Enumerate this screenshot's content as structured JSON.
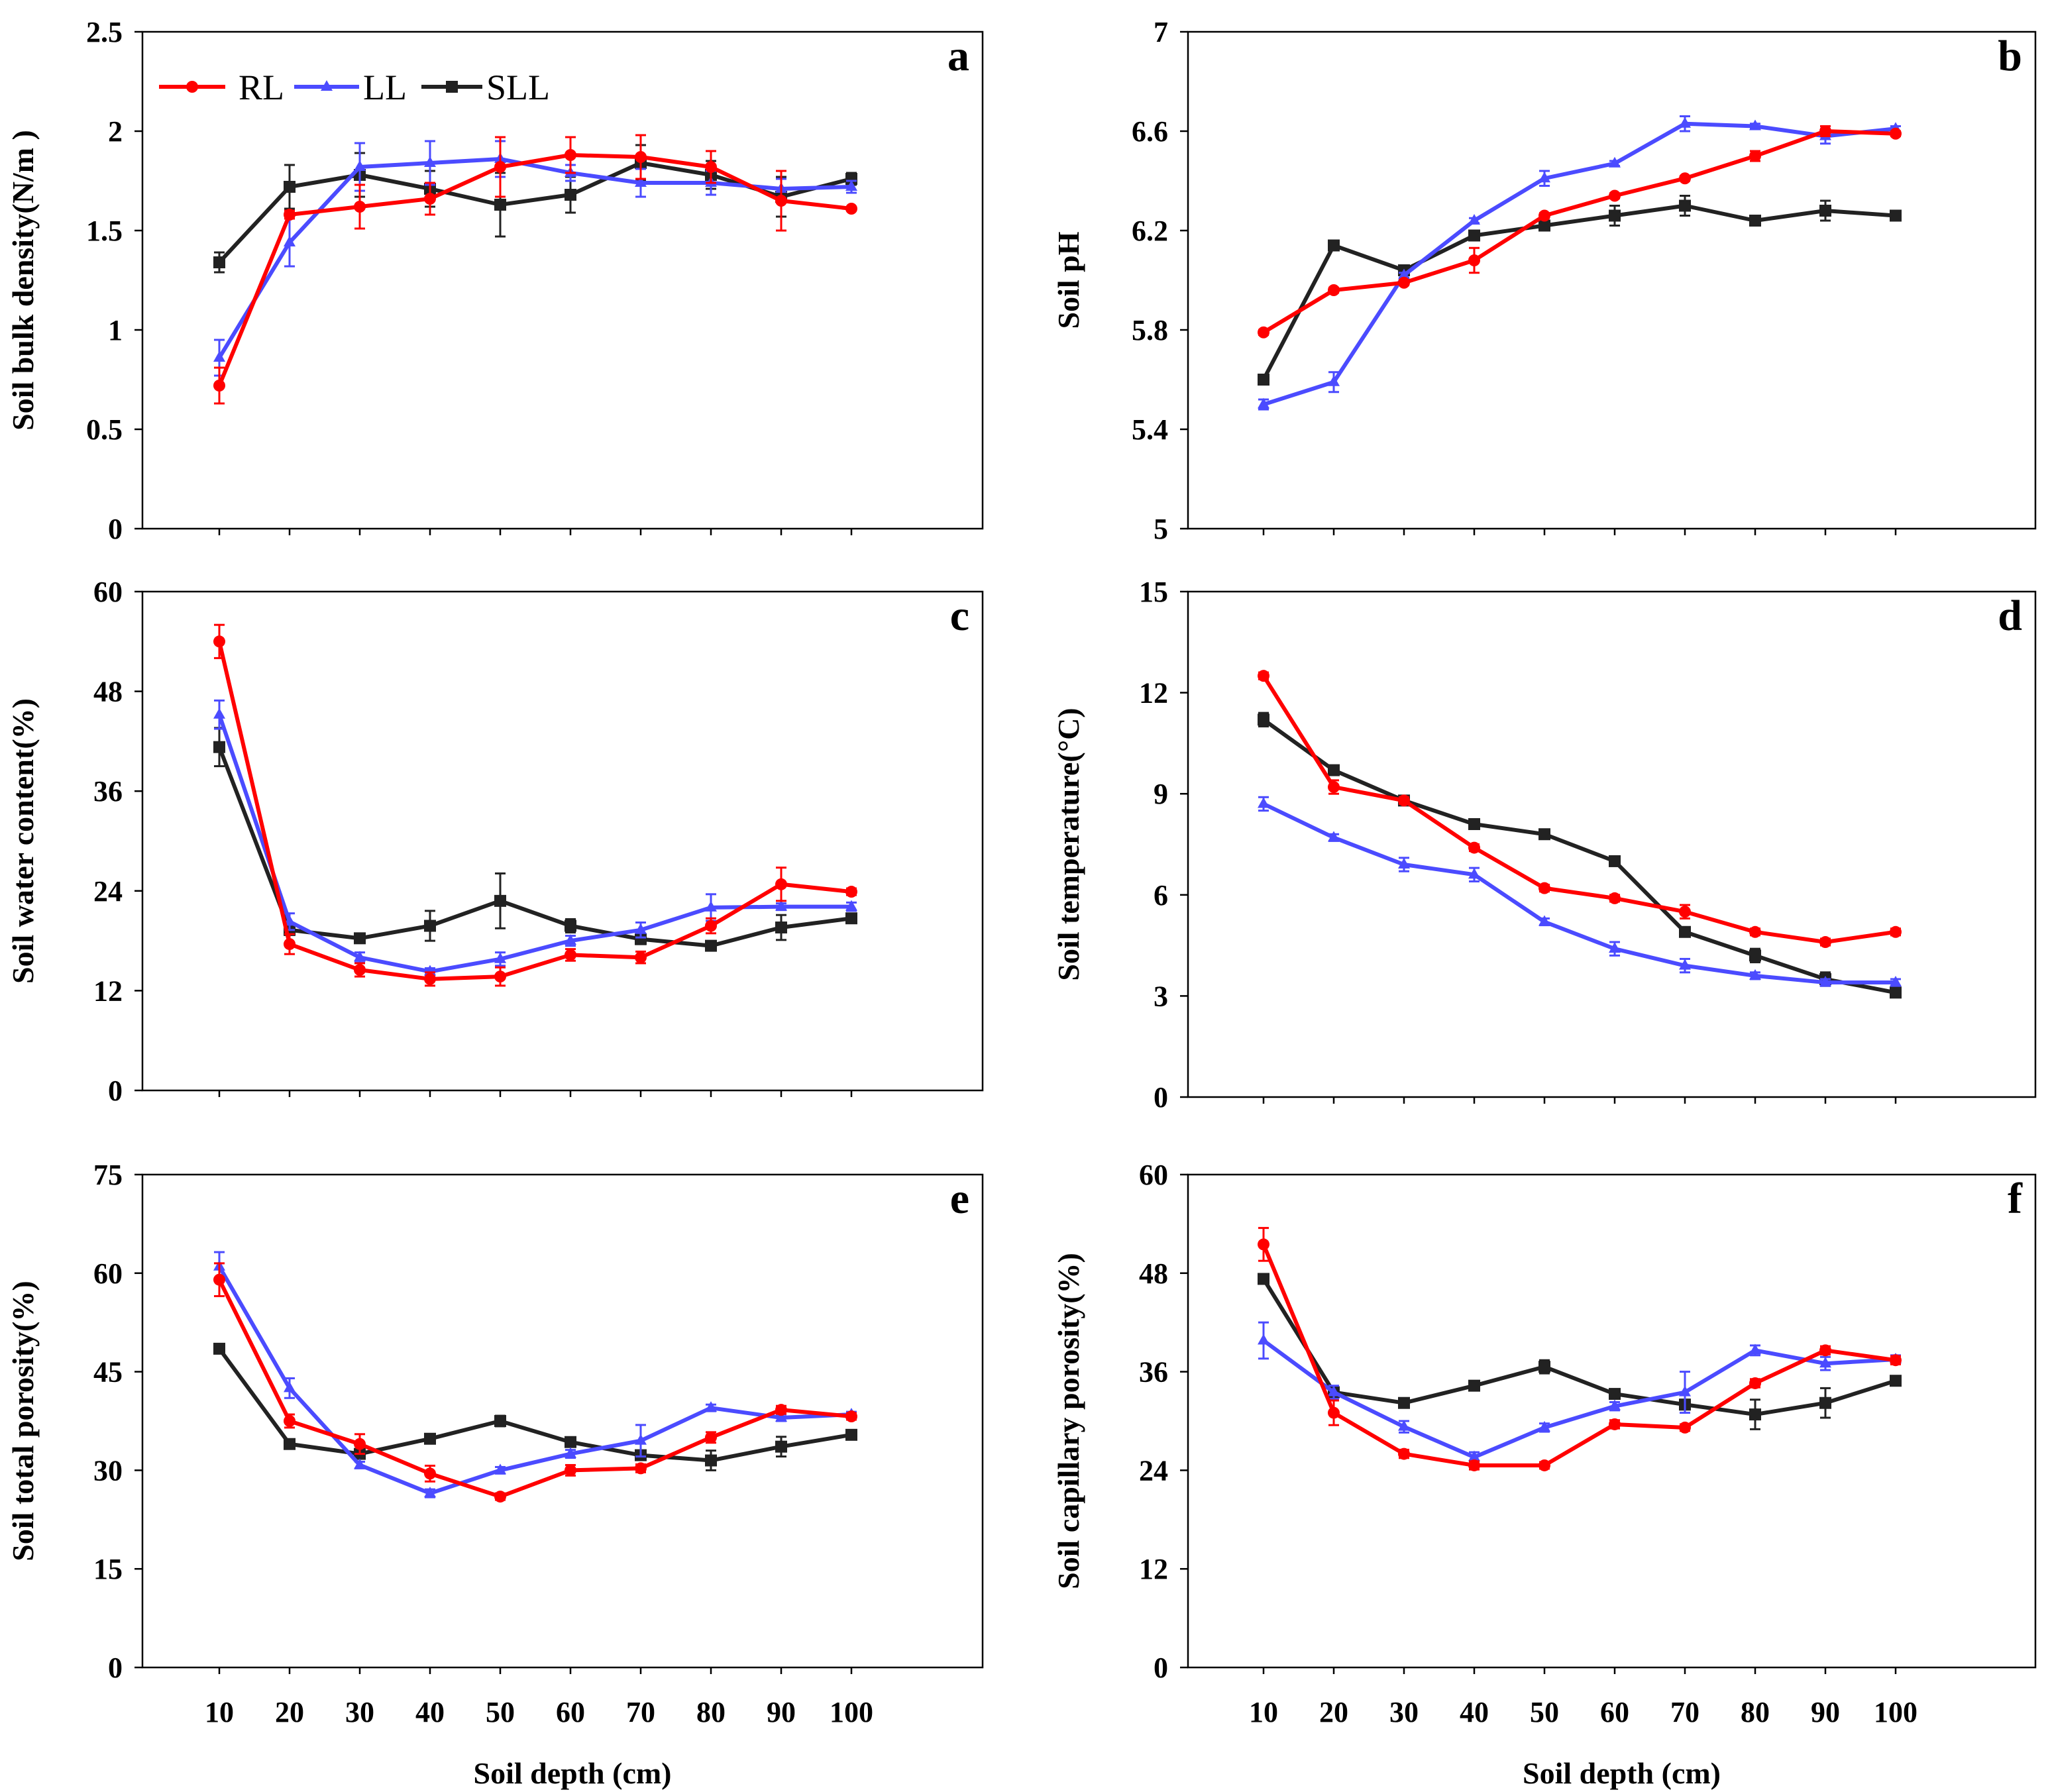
{
  "colors": {
    "RL": "#ff0000",
    "LL": "#4b4bff",
    "SLL": "#222222"
  },
  "legend": [
    {
      "key": "RL",
      "label": "RL",
      "marker": "circle"
    },
    {
      "key": "LL",
      "label": "LL",
      "marker": "triangle"
    },
    {
      "key": "SLL",
      "label": "SLL",
      "marker": "square"
    }
  ],
  "chart_data": [
    {
      "id": "a",
      "letter": "a",
      "type": "line",
      "ylabel": "Soil bulk density(N/m )",
      "xlabel": "",
      "ylim": [
        0,
        2.5
      ],
      "yticks": [
        "0",
        "0.5",
        "1",
        "1.5",
        "2",
        "2.5"
      ],
      "categories": [
        "10",
        "20",
        "30",
        "40",
        "50",
        "60",
        "70",
        "80",
        "90",
        "100"
      ],
      "show_x_labels": false,
      "series": [
        {
          "name": "RL",
          "values": [
            0.72,
            1.58,
            1.62,
            1.66,
            1.82,
            1.88,
            1.87,
            1.82,
            1.65,
            1.61
          ],
          "errors": [
            0.09,
            0.02,
            0.11,
            0.08,
            0.15,
            0.09,
            0.11,
            0.08,
            0.15,
            0.01
          ]
        },
        {
          "name": "LL",
          "values": [
            0.86,
            1.44,
            1.82,
            1.84,
            1.86,
            1.79,
            1.74,
            1.74,
            1.71,
            1.72
          ],
          "errors": [
            0.09,
            0.12,
            0.12,
            0.11,
            0.09,
            0.04,
            0.07,
            0.06,
            0.05,
            0.03
          ]
        },
        {
          "name": "SLL",
          "values": [
            1.34,
            1.72,
            1.78,
            1.71,
            1.63,
            1.68,
            1.84,
            1.78,
            1.67,
            1.76
          ],
          "errors": [
            0.05,
            0.11,
            0.11,
            0.09,
            0.16,
            0.09,
            0.09,
            0.07,
            0.1,
            0.03
          ]
        }
      ]
    },
    {
      "id": "b",
      "letter": "b",
      "type": "line",
      "ylabel": "Soil pH",
      "xlabel": "",
      "ylim": [
        5,
        7
      ],
      "yticks": [
        "5",
        "5.4",
        "5.8",
        "6.2",
        "6.6",
        "7"
      ],
      "categories": [
        "10",
        "20",
        "30",
        "40",
        "50",
        "60",
        "70",
        "80",
        "90",
        "100"
      ],
      "show_x_labels": false,
      "series": [
        {
          "name": "RL",
          "values": [
            5.79,
            5.96,
            5.99,
            6.08,
            6.26,
            6.34,
            6.41,
            6.5,
            6.6,
            6.59
          ],
          "errors": [
            0.01,
            0.01,
            0.01,
            0.05,
            0.01,
            0.01,
            0.01,
            0.02,
            0.02,
            0.01
          ]
        },
        {
          "name": "LL",
          "values": [
            5.5,
            5.59,
            6.02,
            6.24,
            6.41,
            6.47,
            6.63,
            6.62,
            6.58,
            6.61
          ],
          "errors": [
            0.02,
            0.04,
            0.01,
            0.01,
            0.03,
            0.01,
            0.03,
            0.01,
            0.03,
            0.01
          ]
        },
        {
          "name": "SLL",
          "values": [
            5.6,
            6.14,
            6.04,
            6.18,
            6.22,
            6.26,
            6.3,
            6.24,
            6.28,
            6.26
          ],
          "errors": [
            0.02,
            0.01,
            0.02,
            0.01,
            0.01,
            0.04,
            0.04,
            0.01,
            0.04,
            0.01
          ]
        }
      ]
    },
    {
      "id": "c",
      "letter": "c",
      "type": "line",
      "ylabel": "Soil water content(%)",
      "xlabel": "",
      "ylim": [
        0,
        60
      ],
      "yticks": [
        "0",
        "12",
        "24",
        "36",
        "48",
        "60"
      ],
      "categories": [
        "10",
        "20",
        "30",
        "40",
        "50",
        "60",
        "70",
        "80",
        "90",
        "100"
      ],
      "show_x_labels": false,
      "series": [
        {
          "name": "RL",
          "values": [
            54,
            17.6,
            14.5,
            13.4,
            13.7,
            16.3,
            16,
            19.8,
            24.8,
            23.9
          ],
          "errors": [
            2,
            1.2,
            0.8,
            0.8,
            1.1,
            0.7,
            0.7,
            0.9,
            2,
            0.4
          ]
        },
        {
          "name": "LL",
          "values": [
            45.2,
            20.3,
            16,
            14.3,
            15.8,
            18,
            19.3,
            22,
            22.1,
            22.1
          ],
          "errors": [
            1.7,
            1,
            0.6,
            0.4,
            0.8,
            0.6,
            0.9,
            1.6,
            0.4,
            0.5
          ]
        },
        {
          "name": "SLL",
          "values": [
            41.3,
            19.3,
            18.3,
            19.8,
            22.8,
            19.8,
            18.2,
            17.4,
            19.6,
            20.7
          ],
          "errors": [
            2.3,
            0.6,
            0.5,
            1.8,
            3.3,
            0.8,
            0.6,
            0.5,
            1.5,
            0.5
          ]
        }
      ]
    },
    {
      "id": "d",
      "letter": "d",
      "type": "line",
      "ylabel": "Soil temperature(°C)",
      "xlabel": "",
      "ylim": [
        0,
        15
      ],
      "yticks": [
        "0",
        "3",
        "6",
        "9",
        "12",
        "15"
      ],
      "categories": [
        "10",
        "20",
        "30",
        "40",
        "50",
        "60",
        "70",
        "80",
        "90",
        "100"
      ],
      "show_x_labels": false,
      "series": [
        {
          "name": "RL",
          "values": [
            12.5,
            9.2,
            8.8,
            7.4,
            6.2,
            5.9,
            5.5,
            4.9,
            4.6,
            4.9
          ],
          "errors": [
            0.1,
            0.2,
            0.1,
            0.1,
            0.1,
            0.1,
            0.2,
            0.1,
            0.1,
            0.1
          ]
        },
        {
          "name": "LL",
          "values": [
            8.7,
            7.7,
            6.9,
            6.6,
            5.2,
            4.4,
            3.9,
            3.6,
            3.4,
            3.4
          ],
          "errors": [
            0.2,
            0.1,
            0.2,
            0.2,
            0.1,
            0.2,
            0.2,
            0.1,
            0.1,
            0.1
          ]
        },
        {
          "name": "SLL",
          "values": [
            11.2,
            9.7,
            8.8,
            8.1,
            7.8,
            7,
            4.9,
            4.2,
            3.5,
            3.1
          ],
          "errors": [
            0.2,
            0.1,
            0.1,
            0.1,
            0.1,
            0.1,
            0.1,
            0.2,
            0.2,
            0.1
          ]
        }
      ]
    },
    {
      "id": "e",
      "letter": "e",
      "type": "line",
      "ylabel": "Soil total porosity(%)",
      "xlabel": "Soil depth (cm)",
      "ylim": [
        0,
        75
      ],
      "yticks": [
        "0",
        "15",
        "30",
        "45",
        "60",
        "75"
      ],
      "categories": [
        "10",
        "20",
        "30",
        "40",
        "50",
        "60",
        "70",
        "80",
        "90",
        "100"
      ],
      "show_x_labels": true,
      "series": [
        {
          "name": "RL",
          "values": [
            59,
            37.5,
            34,
            29.5,
            26,
            30,
            30.3,
            35,
            39.2,
            38.2
          ],
          "errors": [
            2.5,
            1,
            1.5,
            1.2,
            0.5,
            0.8,
            0.6,
            0.8,
            0.6,
            0.5
          ]
        },
        {
          "name": "LL",
          "values": [
            61,
            42.5,
            30.8,
            26.5,
            30,
            32.5,
            34.5,
            39.5,
            38,
            38.5
          ],
          "errors": [
            2.2,
            1.5,
            0.5,
            0.6,
            0.5,
            0.6,
            2.4,
            0.5,
            0.5,
            0.4
          ]
        },
        {
          "name": "SLL",
          "values": [
            48.5,
            34,
            32.5,
            34.8,
            37.5,
            34.3,
            32.3,
            31.5,
            33.6,
            35.4
          ],
          "errors": [
            0.5,
            0.5,
            0.6,
            0.5,
            0.8,
            0.5,
            0.5,
            1.5,
            1.5,
            0.5
          ]
        }
      ]
    },
    {
      "id": "f",
      "letter": "f",
      "type": "line",
      "ylabel": "Soil capillary porosity(%)",
      "xlabel": "Soil depth (cm)",
      "ylim": [
        0,
        60
      ],
      "yticks": [
        "0",
        "12",
        "24",
        "36",
        "48",
        "60"
      ],
      "categories": [
        "10",
        "20",
        "30",
        "40",
        "50",
        "60",
        "70",
        "80",
        "90",
        "100"
      ],
      "show_x_labels": true,
      "series": [
        {
          "name": "RL",
          "values": [
            51.5,
            31,
            26,
            24.6,
            24.6,
            29.6,
            29.2,
            34.6,
            38.6,
            37.4
          ],
          "errors": [
            2,
            1.5,
            0.5,
            0.5,
            0.4,
            0.5,
            0.4,
            0.5,
            0.5,
            0.5
          ]
        },
        {
          "name": "LL",
          "values": [
            39.8,
            33.5,
            29.3,
            25.6,
            29.2,
            31.8,
            33.5,
            38.6,
            37,
            37.5
          ],
          "errors": [
            2.2,
            0.8,
            0.7,
            0.6,
            0.5,
            0.5,
            2.5,
            0.6,
            0.8,
            0.5
          ]
        },
        {
          "name": "SLL",
          "values": [
            47.3,
            33.5,
            32.2,
            34.3,
            36.6,
            33.3,
            32,
            30.8,
            32.2,
            34.9
          ],
          "errors": [
            0.6,
            0.5,
            0.5,
            0.4,
            0.8,
            0.5,
            0.6,
            1.8,
            1.8,
            0.4
          ]
        }
      ]
    }
  ]
}
